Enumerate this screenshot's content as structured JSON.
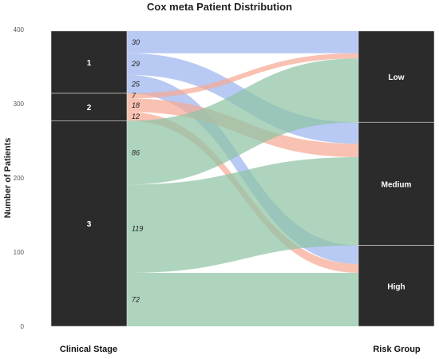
{
  "chart_data": {
    "type": "alluvial",
    "title": "Cox meta Patient Distribution",
    "ylabel": "Number of Patients",
    "yticks": [
      "0",
      "100",
      "200",
      "300",
      "400"
    ],
    "ylim": [
      0,
      400
    ],
    "axes": [
      {
        "name": "Clinical Stage",
        "strata": [
          "1",
          "2",
          "3"
        ]
      },
      {
        "name": "Risk Group",
        "strata": [
          "Low",
          "Medium",
          "High"
        ]
      }
    ],
    "groups": [
      "1",
      "2",
      "3"
    ],
    "group_colors": {
      "1": "#9db4ef",
      "2": "#f6a994",
      "3": "#8fc3a5"
    },
    "flows": [
      {
        "from": "1",
        "to": "Low",
        "value": 30,
        "label": "30"
      },
      {
        "from": "1",
        "to": "Medium",
        "value": 29,
        "label": "29"
      },
      {
        "from": "1",
        "to": "High",
        "value": 25,
        "label": "25"
      },
      {
        "from": "2",
        "to": "Low",
        "value": 7,
        "label": "7"
      },
      {
        "from": "2",
        "to": "Medium",
        "value": 18,
        "label": "18"
      },
      {
        "from": "2",
        "to": "High",
        "value": 12,
        "label": "12"
      },
      {
        "from": "3",
        "to": "Low",
        "value": 86,
        "label": "86"
      },
      {
        "from": "3",
        "to": "Medium",
        "value": 119,
        "label": "119"
      },
      {
        "from": "3",
        "to": "High",
        "value": 72,
        "label": "72"
      }
    ],
    "stratum_color": "#2b2b2b"
  }
}
